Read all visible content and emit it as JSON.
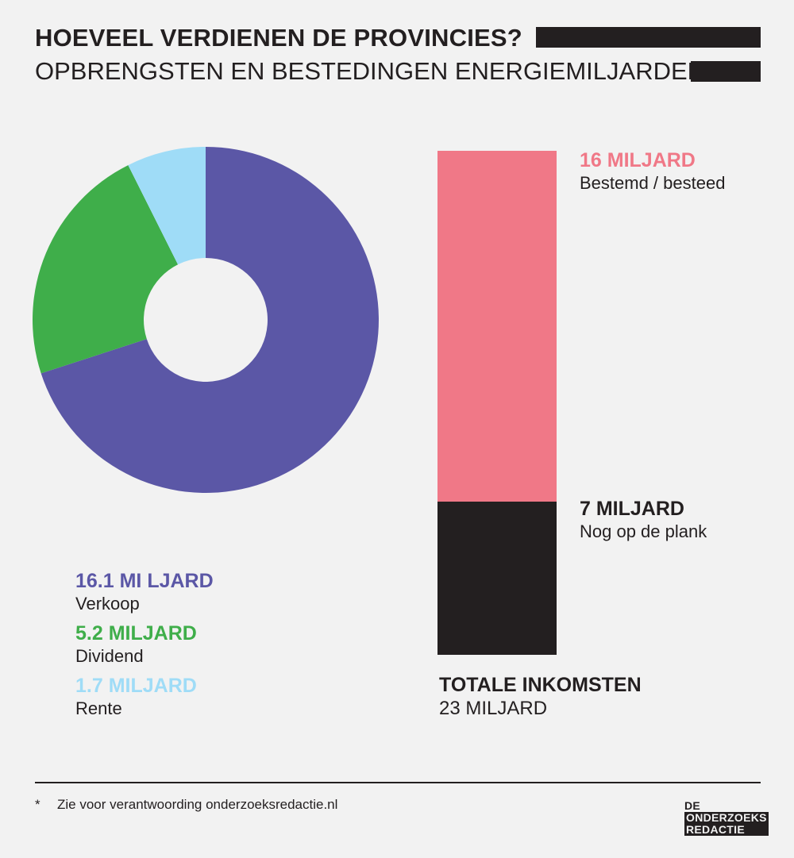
{
  "header": {
    "title": "HOEVEEL VERDIENEN DE PROVINCIES?",
    "subtitle": "OPBRENGSTEN EN BESTEDINGEN ENERGIEMILJARDEN*"
  },
  "colors": {
    "verkoop": "#5b57a6",
    "dividend": "#3fae4a",
    "rente": "#9fdcf7",
    "bestemd": "#f07887",
    "plank": "#231f20",
    "background": "#f2f2f2"
  },
  "chart_data": [
    {
      "type": "pie",
      "variant": "donut",
      "categories": [
        "Verkoop",
        "Dividend",
        "Rente"
      ],
      "values": [
        16.1,
        5.2,
        1.7
      ],
      "unit": "miljard",
      "labels": [
        {
          "value_text": "16.1 MI LJARD",
          "label": "Verkoop"
        },
        {
          "value_text": "5.2 MILJARD",
          "label": "Dividend"
        },
        {
          "value_text": "1.7 MILJARD",
          "label": "Rente"
        }
      ]
    },
    {
      "type": "bar",
      "variant": "stacked",
      "categories": [
        "Bestemd / besteed",
        "Nog op de plank"
      ],
      "values": [
        16,
        7
      ],
      "unit": "miljard",
      "labels": [
        {
          "value_text": "16 MILJARD",
          "label": "Bestemd / besteed"
        },
        {
          "value_text": "7 MILJARD",
          "label": "Nog op de plank"
        }
      ],
      "total": {
        "title": "TOTALE INKOMSTEN",
        "value_text": "23 MILJARD"
      }
    }
  ],
  "footer": {
    "footnote_mark": "*",
    "footnote_text": "Zie voor verantwoording onderzoeksredactie.nl",
    "logo_lines": [
      "DE",
      "ONDERZOEKS",
      "REDACTIE"
    ]
  }
}
